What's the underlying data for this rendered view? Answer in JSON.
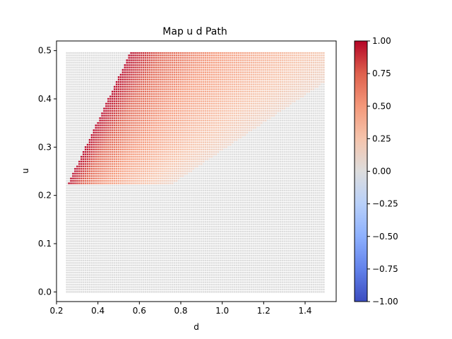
{
  "chart_data": {
    "type": "heatmap",
    "title": "Map u d Path",
    "xlabel": "d",
    "ylabel": "u",
    "xlim": [
      0.2,
      1.55
    ],
    "ylim": [
      -0.02,
      0.52
    ],
    "xticks": [
      0.2,
      0.4,
      0.6,
      0.8,
      1.0,
      1.2,
      1.4
    ],
    "xtick_labels": [
      "0.2",
      "0.4",
      "0.6",
      "0.8",
      "1.0",
      "1.2",
      "1.4"
    ],
    "yticks": [
      0.0,
      0.1,
      0.2,
      0.3,
      0.4,
      0.5
    ],
    "ytick_labels": [
      "0.0",
      "0.1",
      "0.2",
      "0.3",
      "0.4",
      "0.5"
    ],
    "grid": false,
    "colormap": "coolwarm",
    "grid_points": {
      "d_range": [
        0.25,
        1.49
      ],
      "u_range": [
        0.0,
        0.495
      ],
      "n_d": 125,
      "n_u": 100
    },
    "value_model": {
      "description": "value shown by color; points outside the colored region have value 0",
      "colored_region": "u > 0.2867*d + 0.0063 and u > 0.22 and u < 0.9063*d - 0.0078",
      "upper_boundary_slope": 0.9063,
      "upper_boundary_intercept": -0.0078,
      "lower_boundary_slope": 0.2867,
      "lower_boundary_intercept": 0.0063,
      "value_at_upper_boundary": 1.0,
      "value_at_lower_boundary": 0.12,
      "vertical_edge_u_min": 0.22,
      "zero_value_color": "#dddddd"
    },
    "colorbar": {
      "vmin": -1.0,
      "vmax": 1.0,
      "ticks": [
        1.0,
        0.75,
        0.5,
        0.25,
        0.0,
        -0.25,
        -0.5,
        -0.75,
        -1.0
      ],
      "tick_labels": [
        "1.00",
        "0.75",
        "0.50",
        "0.25",
        "0.00",
        "−0.25",
        "−0.50",
        "−0.75",
        "−1.00"
      ]
    },
    "colors": {
      "cmap_low": "#3b4cc0",
      "cmap_mid": "#dddddd",
      "cmap_high": "#b40426"
    }
  }
}
